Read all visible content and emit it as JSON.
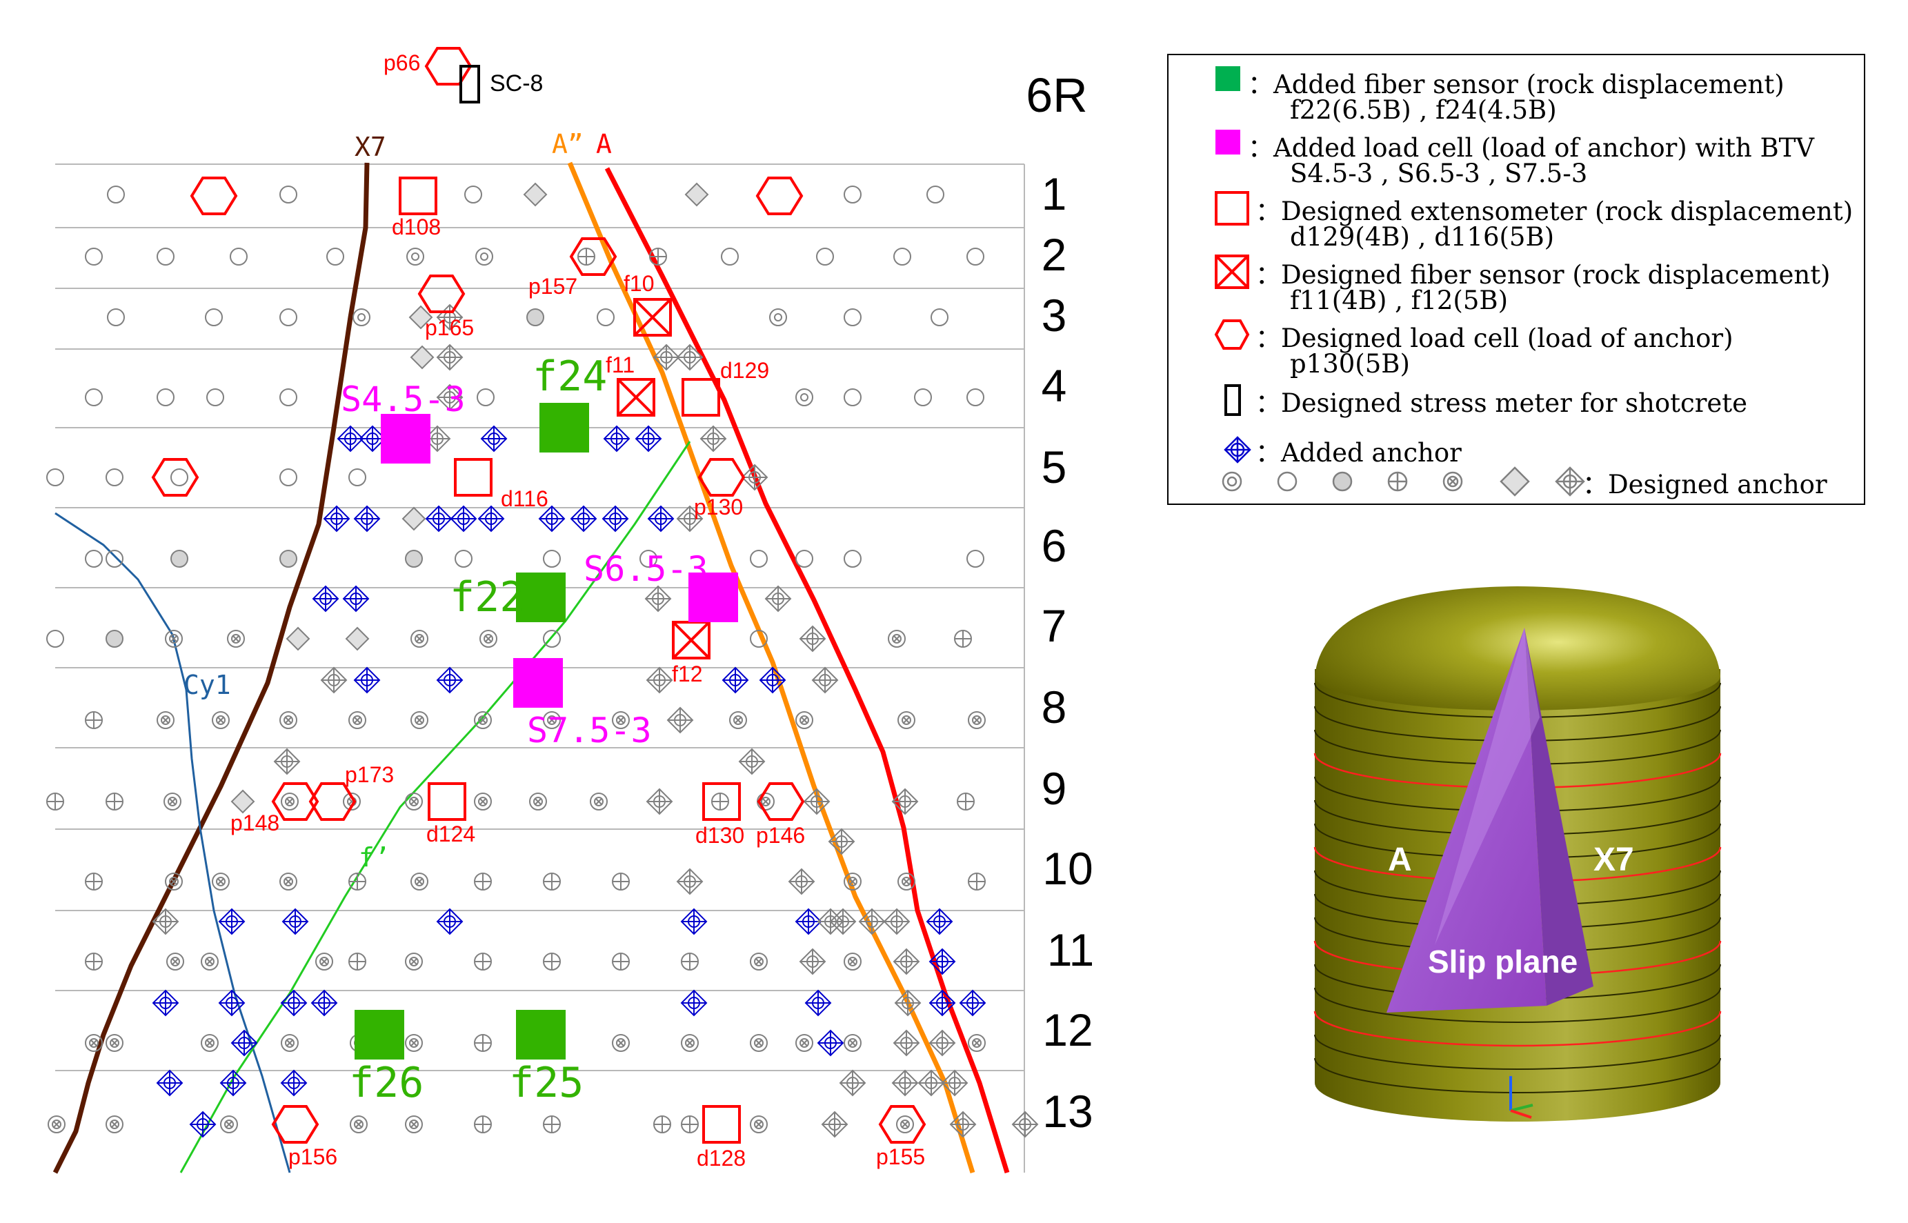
{
  "cavern_title": "6R",
  "bench_labels": [
    "1",
    "2",
    "3",
    "4",
    "5",
    "6",
    "7",
    "8",
    "9",
    "10",
    "11",
    "12",
    "13"
  ],
  "lines": {
    "x7": "X7",
    "a_double_prime": "A”",
    "a": "A",
    "cy1": "Cy1",
    "f_prime": "f’"
  },
  "sensors": {
    "stress_meter": "SC-8",
    "load_cells": [
      "p66",
      "p157",
      "p165",
      "p130",
      "p173",
      "p148",
      "p146",
      "p156",
      "p155"
    ],
    "extensometers": [
      "d108",
      "d116",
      "d129",
      "d124",
      "d130",
      "d128"
    ],
    "fiber_designed": [
      "f10",
      "f11",
      "f12"
    ],
    "fiber_added": [
      "f24",
      "f22",
      "f26",
      "f25"
    ],
    "load_cell_added": [
      "S4.5-3",
      "S6.5-3",
      "S7.5-3"
    ]
  },
  "legend": {
    "added_fiber": "：Added fiber sensor (rock displacement)",
    "added_fiber_items": "f22(6.5B) , f24(4.5B)",
    "added_load_cell": "：Added load cell (load of anchor) with BTV",
    "added_load_cell_items": "S4.5-3 , S6.5-3 , S7.5-3",
    "designed_extensometer": "：Designed extensometer (rock displacement)",
    "designed_extensometer_items": "d129(4B) , d116(5B)",
    "designed_fiber": "：Designed fiber sensor (rock displacement)",
    "designed_fiber_items": "f11(4B) , f12(5B)",
    "designed_load_cell": "：Designed load cell (load of anchor)",
    "designed_load_cell_items": "p130(5B)",
    "stress_meter": "：Designed stress meter for shotcrete",
    "added_anchor": "：Added anchor",
    "designed_anchor": "：Designed anchor"
  },
  "model": {
    "label_a": "A",
    "label_x7": "X7",
    "slip_plane": "Slip plane"
  },
  "colors": {
    "red_sensor": "#ff0000",
    "added_fiber": "#33b300",
    "added_load_cell": "#ff00ff",
    "legend_fiber": "#00b050",
    "added_anchor": "#0000cc",
    "designed_anchor": "#808080",
    "x7_line": "#5a1a00",
    "a_line": "#ff0000",
    "a_double_prime_line": "#ff8c00",
    "cy1_line": "#2060a0",
    "f_prime_line": "#22cc22",
    "tank_olive": "#8a8a10",
    "slip_plane": "#a050d0"
  }
}
